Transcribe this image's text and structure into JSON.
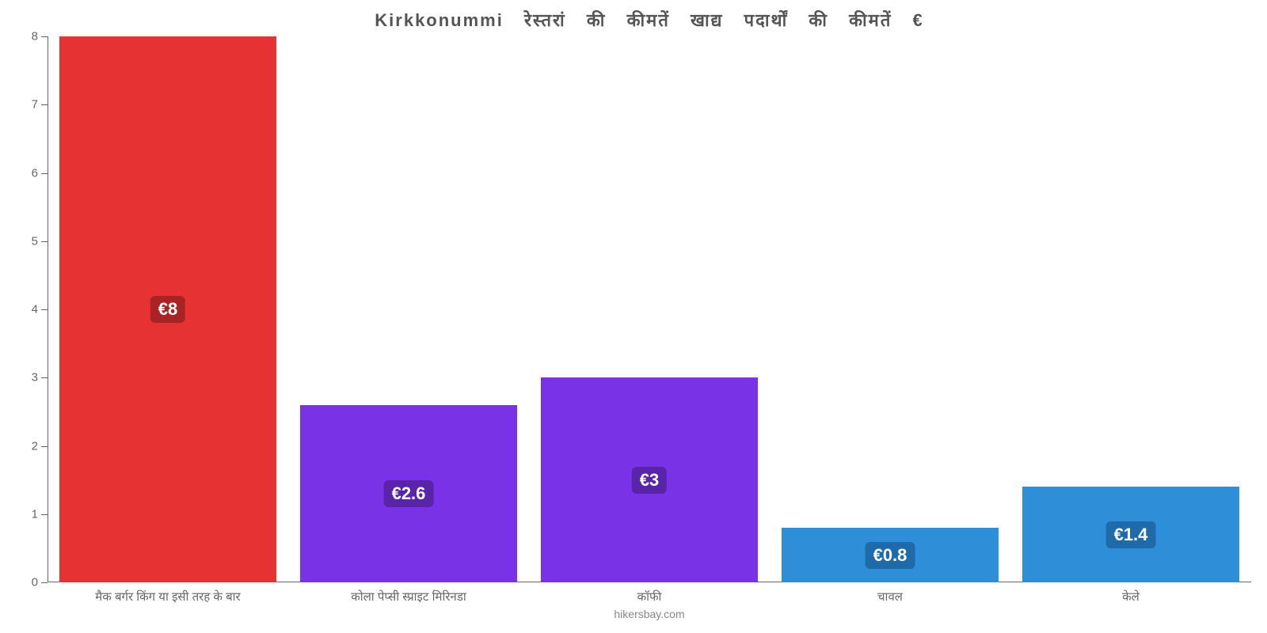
{
  "chart": {
    "type": "bar",
    "title": "Kirkkonummi रेस्तरां की कीमतें खाद्य पदार्थों की कीमतें €",
    "title_fontsize": 22,
    "source": "hikersbay.com",
    "background_color": "#ffffff",
    "axis_color": "#666666",
    "label_color": "#666666",
    "label_fontsize": 15,
    "value_label_fontsize": 22,
    "ylim": [
      0,
      8
    ],
    "ytick_step": 1,
    "yticks": [
      0,
      1,
      2,
      3,
      4,
      5,
      6,
      7,
      8
    ],
    "bar_width_pct": 90,
    "categories": [
      "मैक बर्गर किंग या इसी तरह के बार",
      "कोला पेप्सी स्प्राइट मिरिनडा",
      "कॉफी",
      "चावल",
      "केले"
    ],
    "values": [
      8,
      2.6,
      3,
      0.8,
      1.4
    ],
    "value_labels": [
      "€8",
      "€2.6",
      "€3",
      "€0.8",
      "€1.4"
    ],
    "bar_colors": [
      "#e63232",
      "#7a32e6",
      "#7a32e6",
      "#2f8ed8",
      "#2f8ed8"
    ],
    "badge_colors": [
      "#a82424",
      "#5a24a8",
      "#5a24a8",
      "#1f6aa8",
      "#1f6aa8"
    ]
  }
}
